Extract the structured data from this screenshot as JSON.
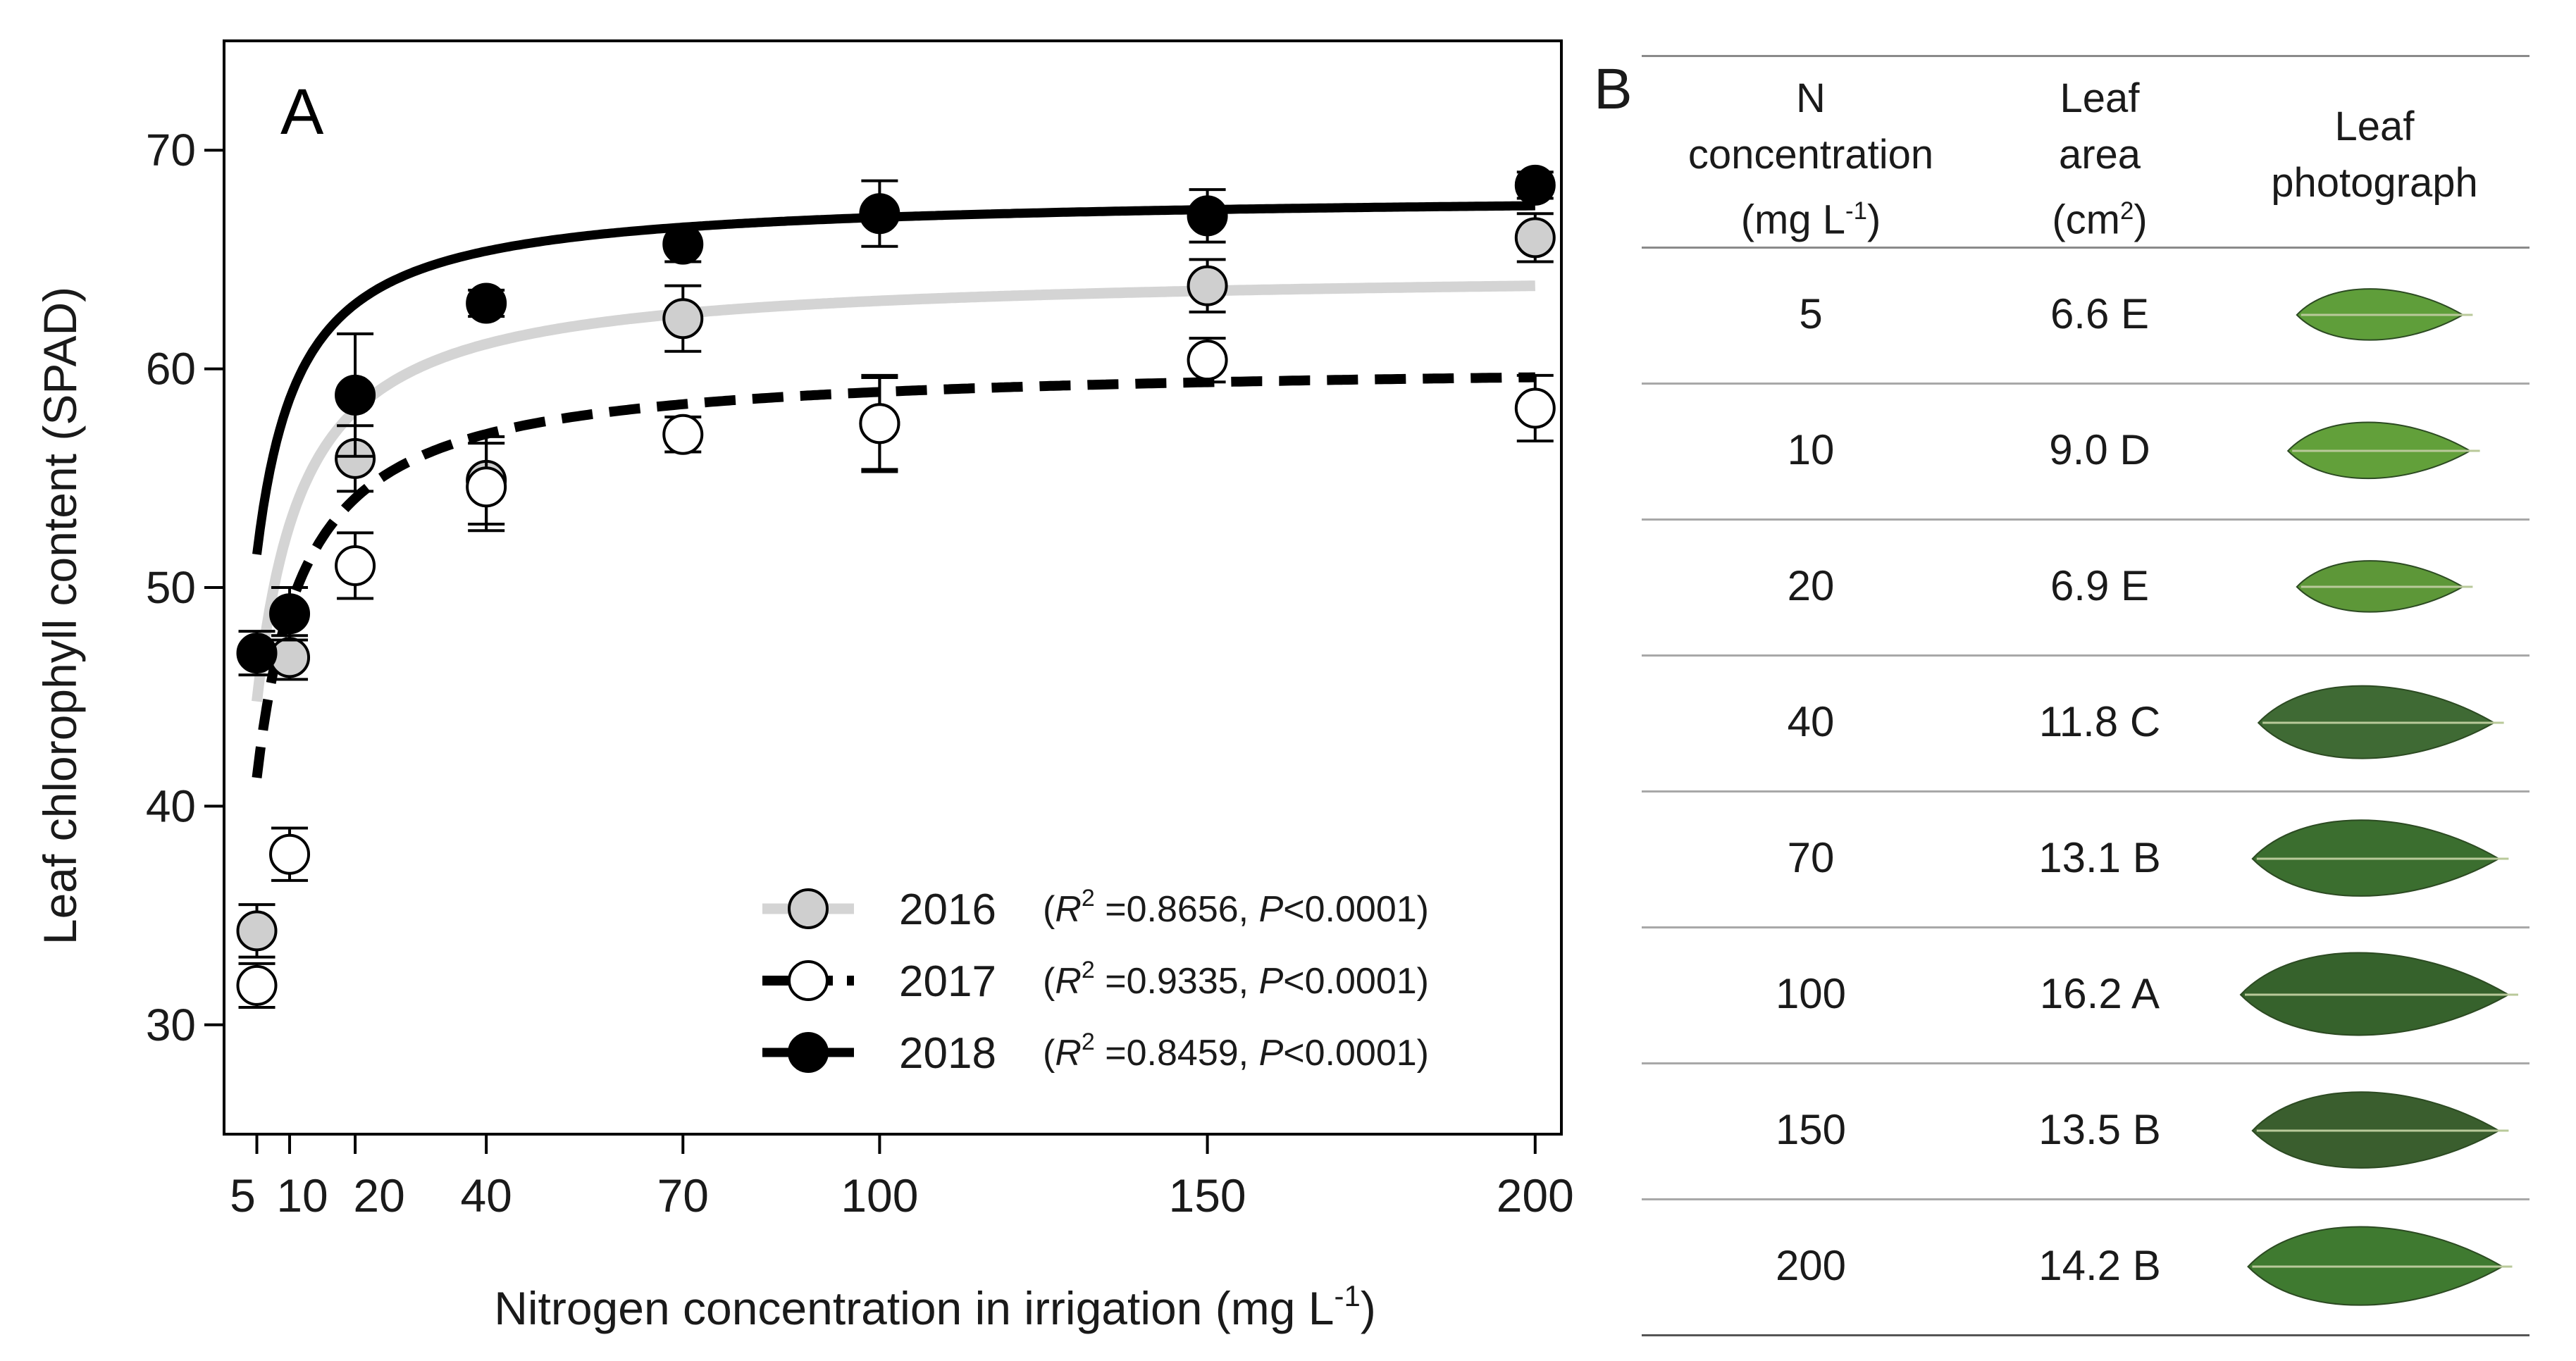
{
  "chart_data": {
    "type": "scatter",
    "panel_label": "A",
    "xlabel": "Nitrogen concentration in irrigation (mg L",
    "xlabel_unit_sup": "-1",
    "xlabel_close": ")",
    "ylabel": "Leaf chlorophyll content (SPAD)",
    "xlim": [
      0,
      204
    ],
    "ylim": [
      25,
      75
    ],
    "xticks": [
      5,
      10,
      20,
      40,
      70,
      100,
      150,
      200
    ],
    "yticks": [
      30,
      40,
      50,
      60,
      70
    ],
    "x": [
      5,
      10,
      20,
      40,
      70,
      100,
      150,
      200
    ],
    "series": [
      {
        "name": "2016",
        "r2_text": "=0.8656,",
        "p_text": "<0.0001)",
        "marker": "circle-gray",
        "line": "solid-gray",
        "values": [
          34.3,
          46.8,
          55.9,
          54.9,
          62.3,
          57.5,
          63.8,
          66.0
        ],
        "errors": [
          1.2,
          1.0,
          1.5,
          2.0,
          1.5,
          2.2,
          1.2,
          1.1
        ],
        "curve": {
          "a": 64.5,
          "b": 2.2
        }
      },
      {
        "name": "2017",
        "r2_text": "=0.9335,",
        "p_text": "<0.0001)",
        "marker": "circle-white",
        "line": "dashed-black",
        "values": [
          31.8,
          37.8,
          51.0,
          54.6,
          57.0,
          57.5,
          60.4,
          58.2
        ],
        "errors": [
          1.0,
          1.2,
          1.5,
          2.0,
          0.8,
          2.1,
          1.0,
          1.5
        ],
        "curve": {
          "a": 60.3,
          "b": 2.3
        }
      },
      {
        "name": "2018",
        "r2_text": "=0.8459,",
        "p_text": "<0.0001)",
        "marker": "circle-black",
        "line": "solid-black",
        "values": [
          47.0,
          48.8,
          58.8,
          63.0,
          65.7,
          67.1,
          67.0,
          68.4
        ],
        "errors": [
          1.0,
          1.2,
          2.8,
          0.6,
          0.8,
          1.5,
          1.2,
          0.6
        ],
        "curve": {
          "a": 68.0,
          "b": 1.6
        }
      }
    ],
    "legend_prefix": "(",
    "legend_r": "R",
    "legend_p": "P",
    "legend_location": "bottom-right"
  },
  "table": {
    "panel_label": "B",
    "headers": {
      "n_line1": "N",
      "n_line2": "concentration",
      "n_line3": "(mg L",
      "n_sup": "-1",
      "n_close": ")",
      "area_line1": "Leaf",
      "area_line2": "area",
      "area_line3": "(cm",
      "area_sup": "2",
      "area_close": ")",
      "photo_line1": "Leaf",
      "photo_line2": "photograph"
    },
    "rows": [
      {
        "n": "5",
        "area": "6.6 E",
        "leaf_size": 0.62,
        "leaf_color": "#5f9e3a"
      },
      {
        "n": "10",
        "area": "9.0 D",
        "leaf_size": 0.68,
        "leaf_color": "#62a03a"
      },
      {
        "n": "20",
        "area": "6.9 E",
        "leaf_size": 0.62,
        "leaf_color": "#5d9738"
      },
      {
        "n": "40",
        "area": "11.8 C",
        "leaf_size": 0.88,
        "leaf_color": "#3f6a34"
      },
      {
        "n": "70",
        "area": "13.1 B",
        "leaf_size": 0.92,
        "leaf_color": "#3b6e2f"
      },
      {
        "n": "100",
        "area": "16.2 A",
        "leaf_size": 1.0,
        "leaf_color": "#36622c"
      },
      {
        "n": "150",
        "area": "13.5 B",
        "leaf_size": 0.92,
        "leaf_color": "#3a5e2e"
      },
      {
        "n": "200",
        "area": "14.2 B",
        "leaf_size": 0.95,
        "leaf_color": "#3f7a30"
      }
    ]
  }
}
